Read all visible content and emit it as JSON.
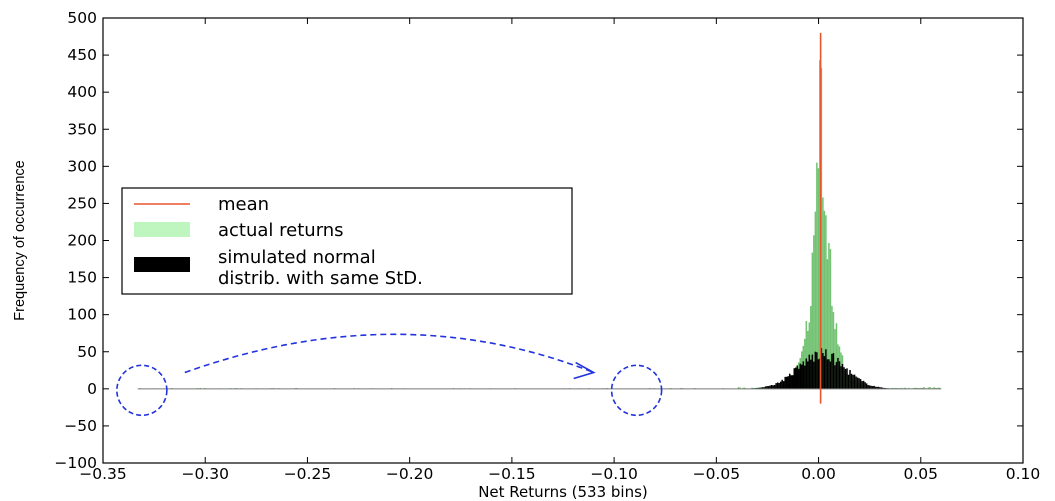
{
  "chart_data": {
    "type": "histogram",
    "title": "",
    "xlabel": "Net Returns (533 bins)",
    "ylabel": "Frequency of occurrence",
    "xlim": [
      -0.35,
      0.1
    ],
    "ylim": [
      -100,
      500
    ],
    "xticks": [
      -0.35,
      -0.3,
      -0.25,
      -0.2,
      -0.15,
      -0.1,
      -0.05,
      0.0,
      0.05,
      0.1
    ],
    "xtick_labels": [
      "−0.35",
      "−0.30",
      "−0.25",
      "−0.20",
      "−0.15",
      "−0.10",
      "−0.05",
      "0.00",
      "0.05",
      "0.10"
    ],
    "yticks": [
      -100,
      -50,
      0,
      50,
      100,
      150,
      200,
      250,
      300,
      350,
      400,
      450,
      500
    ],
    "ytick_labels": [
      "−100",
      "−50",
      "0",
      "50",
      "100",
      "150",
      "200",
      "250",
      "300",
      "350",
      "400",
      "450",
      "500"
    ],
    "grid": false,
    "legend_position": "center-left",
    "series": [
      {
        "name": "mean",
        "kind": "vline",
        "x": 0.001,
        "y_range": [
          -20,
          480
        ],
        "color": "#e8552b"
      },
      {
        "name": "actual returns",
        "kind": "histogram",
        "color": "#5cb85c",
        "legend_color": "#bff5bf",
        "range": [
          -0.333,
          0.06
        ],
        "peak": 443,
        "center": 0.001,
        "scale": 0.0042,
        "tail_level": 1.2,
        "spikes": [
          {
            "x": 0.0005,
            "y": 443
          },
          {
            "x": 0.0025,
            "y": 240
          },
          {
            "x": 0.0035,
            "y": 234
          },
          {
            "x": 0.002,
            "y": 258
          },
          {
            "x": -0.001,
            "y": 305
          }
        ]
      },
      {
        "name": "simulated normal\ndistrib. with same StD.",
        "legend_lines": [
          "simulated normal",
          "distrib. with same StD."
        ],
        "kind": "histogram",
        "color": "#000000",
        "range": [
          -0.04,
          0.042
        ],
        "peak": 46,
        "center": 0.001,
        "sigma": 0.0115
      }
    ],
    "annotations": [
      {
        "kind": "dashed-circle",
        "x": -0.331,
        "y": -2,
        "color": "#2233dd"
      },
      {
        "kind": "dashed-circle",
        "x": -0.089,
        "y": -2,
        "color": "#2233dd"
      },
      {
        "kind": "dashed-arrow",
        "from": [
          -0.31,
          22
        ],
        "via": [
          -0.205,
          125
        ],
        "to": [
          -0.11,
          22
        ],
        "color": "#2233dd"
      }
    ]
  }
}
